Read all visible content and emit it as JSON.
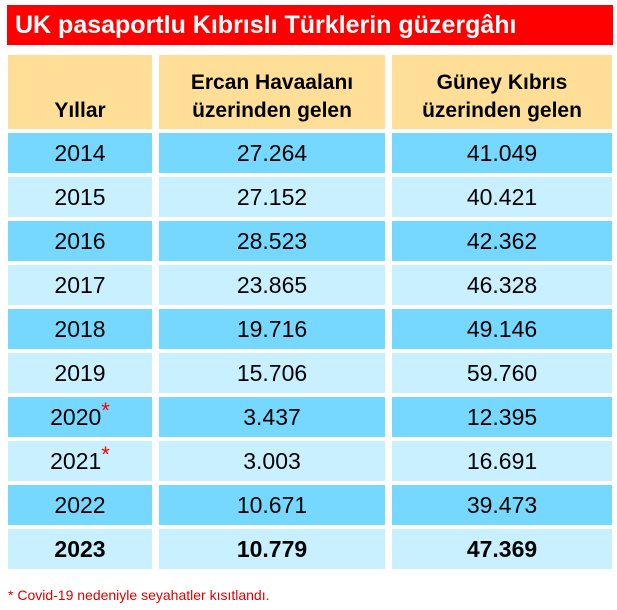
{
  "title": "UK pasaportlu Kıbrıslı Türklerin güzergâhı",
  "table": {
    "header": [
      [
        "Yıllar"
      ],
      [
        "Ercan Havaalanı",
        "üzerinden gelen"
      ],
      [
        "Güney Kıbrıs",
        "üzerinden gelen"
      ]
    ],
    "rows": [
      {
        "year": "2014",
        "ercan": "27.264",
        "guney": "41.049"
      },
      {
        "year": "2015",
        "ercan": "27.152",
        "guney": "40.421"
      },
      {
        "year": "2016",
        "ercan": "28.523",
        "guney": "42.362"
      },
      {
        "year": "2017",
        "ercan": "23.865",
        "guney": "46.328"
      },
      {
        "year": "2018",
        "ercan": "19.716",
        "guney": "49.146"
      },
      {
        "year": "2019",
        "ercan": "15.706",
        "guney": "59.760"
      },
      {
        "year": "2020",
        "mark": "*",
        "ercan": "3.437",
        "guney": "12.395"
      },
      {
        "year": "2021",
        "mark": "*",
        "ercan": "3.003",
        "guney": "16.691"
      },
      {
        "year": "2022",
        "ercan": "10.671",
        "guney": "39.473"
      },
      {
        "year": "2023",
        "ercan": "10.779",
        "guney": "47.369"
      }
    ]
  },
  "footnote": "* Covid-19 nedeniyle seyahatler kısıtlandı."
}
